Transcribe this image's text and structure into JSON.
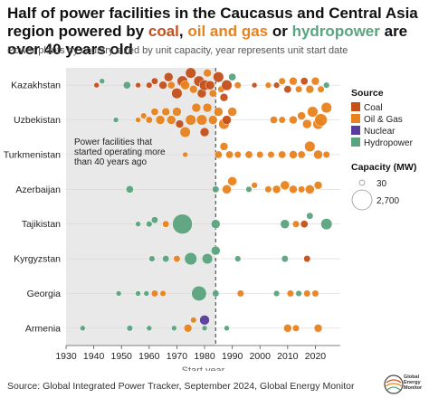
{
  "title_parts": [
    {
      "text": "Half of power facilities in the Caucasus and Central Asia region powered by ",
      "color": "#111111"
    },
    {
      "text": "coal",
      "color": "#c4501b"
    },
    {
      "text": ", ",
      "color": "#111111"
    },
    {
      "text": "oil and gas",
      "color": "#e8821e"
    },
    {
      "text": " or ",
      "color": "#111111"
    },
    {
      "text": "hydropower",
      "color": "#5aa47f"
    },
    {
      "text": " are over 40 years old",
      "color": "#111111"
    }
  ],
  "subtitle": "Power plants by country sized by unit capacity, year represents unit start date",
  "footer": "Source: Global Integrated Power Tracker, September 2024, Global Energy Monitor",
  "logo_text": "Global Energy Monitor",
  "chart_data": {
    "type": "scatter",
    "subtype": "beeswarm",
    "xlabel": "Start year",
    "xlim": [
      1930,
      2029
    ],
    "xticks": [
      1930,
      1940,
      1950,
      1960,
      1970,
      1980,
      1990,
      2000,
      2010,
      2020
    ],
    "shaded_region": [
      1930,
      1984
    ],
    "reference_line_x": 1984,
    "annotation": "Power facilities that started operating more than 40 years ago",
    "countries": [
      "Kazakhstan",
      "Uzbekistan",
      "Turkmenistan",
      "Azerbaijan",
      "Tajikistan",
      "Kyrgyzstan",
      "Georgia",
      "Armenia"
    ],
    "legend_source": {
      "title": "Source",
      "items": [
        {
          "name": "Coal",
          "color": "#c4501b"
        },
        {
          "name": "Oil & Gas",
          "color": "#e8821e"
        },
        {
          "name": "Nuclear",
          "color": "#5a3c9c"
        },
        {
          "name": "Hydropower",
          "color": "#5aa47f"
        }
      ]
    },
    "legend_capacity": {
      "title": "Capacity (MW)",
      "items": [
        {
          "label": "30",
          "value": 30
        },
        {
          "label": "2,700",
          "value": 2700
        }
      ]
    },
    "series": [
      {
        "country": "Kazakhstan",
        "points": [
          {
            "x": 1941,
            "type": "Coal",
            "cap": 30
          },
          {
            "x": 1943,
            "type": "Hydropower",
            "cap": 30
          },
          {
            "x": 1952,
            "type": "Hydropower",
            "cap": 150
          },
          {
            "x": 1956,
            "type": "Coal",
            "cap": 30
          },
          {
            "x": 1960,
            "type": "Coal",
            "cap": 60
          },
          {
            "x": 1962,
            "type": "Coal",
            "cap": 100
          },
          {
            "x": 1965,
            "type": "Coal",
            "cap": 200
          },
          {
            "x": 1967,
            "type": "Coal",
            "cap": 300
          },
          {
            "x": 1968,
            "type": "Oil & Gas",
            "cap": 150
          },
          {
            "x": 1970,
            "type": "Coal",
            "cap": 500
          },
          {
            "x": 1972,
            "type": "Coal",
            "cap": 500
          },
          {
            "x": 1973,
            "type": "Oil & Gas",
            "cap": 300
          },
          {
            "x": 1975,
            "type": "Coal",
            "cap": 500
          },
          {
            "x": 1976,
            "type": "Oil & Gas",
            "cap": 200
          },
          {
            "x": 1978,
            "type": "Coal",
            "cap": 500
          },
          {
            "x": 1979,
            "type": "Coal",
            "cap": 300
          },
          {
            "x": 1980,
            "type": "Coal",
            "cap": 500
          },
          {
            "x": 1981,
            "type": "Oil & Gas",
            "cap": 200
          },
          {
            "x": 1982,
            "type": "Coal",
            "cap": 300
          },
          {
            "x": 1983,
            "type": "Oil & Gas",
            "cap": 150
          },
          {
            "x": 1985,
            "type": "Coal",
            "cap": 500
          },
          {
            "x": 1986,
            "type": "Oil & Gas",
            "cap": 100
          },
          {
            "x": 1987,
            "type": "Coal",
            "cap": 200
          },
          {
            "x": 1988,
            "type": "Coal",
            "cap": 500
          },
          {
            "x": 1990,
            "type": "Hydropower",
            "cap": 150
          },
          {
            "x": 1992,
            "type": "Oil & Gas",
            "cap": 100
          },
          {
            "x": 1998,
            "type": "Coal",
            "cap": 30
          },
          {
            "x": 2003,
            "type": "Oil & Gas",
            "cap": 60
          },
          {
            "x": 2006,
            "type": "Coal",
            "cap": 60
          },
          {
            "x": 2008,
            "type": "Oil & Gas",
            "cap": 100
          },
          {
            "x": 2010,
            "type": "Coal",
            "cap": 150
          },
          {
            "x": 2012,
            "type": "Oil & Gas",
            "cap": 200
          },
          {
            "x": 2014,
            "type": "Oil & Gas",
            "cap": 100
          },
          {
            "x": 2016,
            "type": "Coal",
            "cap": 150
          },
          {
            "x": 2018,
            "type": "Oil & Gas",
            "cap": 200
          },
          {
            "x": 2020,
            "type": "Oil & Gas",
            "cap": 200
          },
          {
            "x": 2022,
            "type": "Oil & Gas",
            "cap": 100
          },
          {
            "x": 2024,
            "type": "Hydropower",
            "cap": 60
          }
        ]
      },
      {
        "country": "Uzbekistan",
        "points": [
          {
            "x": 1948,
            "type": "Hydropower",
            "cap": 30
          },
          {
            "x": 1956,
            "type": "Oil & Gas",
            "cap": 30
          },
          {
            "x": 1958,
            "type": "Oil & Gas",
            "cap": 60
          },
          {
            "x": 1960,
            "type": "Oil & Gas",
            "cap": 100
          },
          {
            "x": 1962,
            "type": "Oil & Gas",
            "cap": 150
          },
          {
            "x": 1964,
            "type": "Oil & Gas",
            "cap": 300
          },
          {
            "x": 1966,
            "type": "Oil & Gas",
            "cap": 200
          },
          {
            "x": 1968,
            "type": "Oil & Gas",
            "cap": 300
          },
          {
            "x": 1970,
            "type": "Oil & Gas",
            "cap": 300
          },
          {
            "x": 1971,
            "type": "Coal",
            "cap": 200
          },
          {
            "x": 1973,
            "type": "Oil & Gas",
            "cap": 500
          },
          {
            "x": 1975,
            "type": "Oil & Gas",
            "cap": 500
          },
          {
            "x": 1977,
            "type": "Oil & Gas",
            "cap": 300
          },
          {
            "x": 1979,
            "type": "Oil & Gas",
            "cap": 500
          },
          {
            "x": 1980,
            "type": "Coal",
            "cap": 300
          },
          {
            "x": 1981,
            "type": "Oil & Gas",
            "cap": 300
          },
          {
            "x": 1983,
            "type": "Oil & Gas",
            "cap": 300
          },
          {
            "x": 1985,
            "type": "Oil & Gas",
            "cap": 300
          },
          {
            "x": 1987,
            "type": "Oil & Gas",
            "cap": 500
          },
          {
            "x": 1988,
            "type": "Coal",
            "cap": 300
          },
          {
            "x": 1990,
            "type": "Oil & Gas",
            "cap": 300
          },
          {
            "x": 2005,
            "type": "Oil & Gas",
            "cap": 150
          },
          {
            "x": 2008,
            "type": "Oil & Gas",
            "cap": 100
          },
          {
            "x": 2012,
            "type": "Oil & Gas",
            "cap": 200
          },
          {
            "x": 2015,
            "type": "Oil & Gas",
            "cap": 200
          },
          {
            "x": 2017,
            "type": "Oil & Gas",
            "cap": 300
          },
          {
            "x": 2019,
            "type": "Oil & Gas",
            "cap": 500
          },
          {
            "x": 2021,
            "type": "Oil & Gas",
            "cap": 500
          },
          {
            "x": 2022,
            "type": "Oil & Gas",
            "cap": 800
          },
          {
            "x": 2024,
            "type": "Oil & Gas",
            "cap": 500
          }
        ]
      },
      {
        "country": "Turkmenistan",
        "points": [
          {
            "x": 1973,
            "type": "Oil & Gas",
            "cap": 30
          },
          {
            "x": 1985,
            "type": "Oil & Gas",
            "cap": 150
          },
          {
            "x": 1987,
            "type": "Oil & Gas",
            "cap": 200
          },
          {
            "x": 1989,
            "type": "Oil & Gas",
            "cap": 150
          },
          {
            "x": 1992,
            "type": "Oil & Gas",
            "cap": 100
          },
          {
            "x": 1996,
            "type": "Oil & Gas",
            "cap": 150
          },
          {
            "x": 2000,
            "type": "Oil & Gas",
            "cap": 100
          },
          {
            "x": 2004,
            "type": "Oil & Gas",
            "cap": 100
          },
          {
            "x": 2008,
            "type": "Oil & Gas",
            "cap": 150
          },
          {
            "x": 2012,
            "type": "Oil & Gas",
            "cap": 200
          },
          {
            "x": 2015,
            "type": "Oil & Gas",
            "cap": 150
          },
          {
            "x": 2018,
            "type": "Oil & Gas",
            "cap": 500
          },
          {
            "x": 2021,
            "type": "Oil & Gas",
            "cap": 300
          },
          {
            "x": 2024,
            "type": "Oil & Gas",
            "cap": 100
          }
        ]
      },
      {
        "country": "Azerbaijan",
        "points": [
          {
            "x": 1953,
            "type": "Hydropower",
            "cap": 150
          },
          {
            "x": 1984,
            "type": "Hydropower",
            "cap": 100
          },
          {
            "x": 1988,
            "type": "Oil & Gas",
            "cap": 300
          },
          {
            "x": 1990,
            "type": "Oil & Gas",
            "cap": 300
          },
          {
            "x": 1996,
            "type": "Hydropower",
            "cap": 60
          },
          {
            "x": 1998,
            "type": "Oil & Gas",
            "cap": 60
          },
          {
            "x": 2003,
            "type": "Oil & Gas",
            "cap": 100
          },
          {
            "x": 2006,
            "type": "Oil & Gas",
            "cap": 200
          },
          {
            "x": 2009,
            "type": "Oil & Gas",
            "cap": 300
          },
          {
            "x": 2012,
            "type": "Oil & Gas",
            "cap": 200
          },
          {
            "x": 2015,
            "type": "Oil & Gas",
            "cap": 100
          },
          {
            "x": 2018,
            "type": "Oil & Gas",
            "cap": 300
          },
          {
            "x": 2021,
            "type": "Oil & Gas",
            "cap": 200
          }
        ]
      },
      {
        "country": "Tajikistan",
        "points": [
          {
            "x": 1956,
            "type": "Hydropower",
            "cap": 30
          },
          {
            "x": 1960,
            "type": "Hydropower",
            "cap": 60
          },
          {
            "x": 1962,
            "type": "Hydropower",
            "cap": 100
          },
          {
            "x": 1966,
            "type": "Oil & Gas",
            "cap": 100
          },
          {
            "x": 1972,
            "type": "Hydropower",
            "cap": 2700
          },
          {
            "x": 1984,
            "type": "Hydropower",
            "cap": 300
          },
          {
            "x": 2009,
            "type": "Hydropower",
            "cap": 300
          },
          {
            "x": 2013,
            "type": "Oil & Gas",
            "cap": 100
          },
          {
            "x": 2016,
            "type": "Coal",
            "cap": 150
          },
          {
            "x": 2018,
            "type": "Hydropower",
            "cap": 100
          },
          {
            "x": 2024,
            "type": "Hydropower",
            "cap": 600
          }
        ]
      },
      {
        "country": "Kyrgyzstan",
        "points": [
          {
            "x": 1961,
            "type": "Hydropower",
            "cap": 60
          },
          {
            "x": 1966,
            "type": "Hydropower",
            "cap": 100
          },
          {
            "x": 1970,
            "type": "Oil & Gas",
            "cap": 100
          },
          {
            "x": 1975,
            "type": "Hydropower",
            "cap": 800
          },
          {
            "x": 1981,
            "type": "Hydropower",
            "cap": 500
          },
          {
            "x": 1984,
            "type": "Hydropower",
            "cap": 300
          },
          {
            "x": 1992,
            "type": "Hydropower",
            "cap": 60
          },
          {
            "x": 2009,
            "type": "Hydropower",
            "cap": 100
          },
          {
            "x": 2017,
            "type": "Coal",
            "cap": 100
          }
        ]
      },
      {
        "country": "Georgia",
        "points": [
          {
            "x": 1949,
            "type": "Hydropower",
            "cap": 30
          },
          {
            "x": 1956,
            "type": "Hydropower",
            "cap": 30
          },
          {
            "x": 1959,
            "type": "Hydropower",
            "cap": 30
          },
          {
            "x": 1962,
            "type": "Oil & Gas",
            "cap": 100
          },
          {
            "x": 1965,
            "type": "Oil & Gas",
            "cap": 60
          },
          {
            "x": 1978,
            "type": "Hydropower",
            "cap": 1300
          },
          {
            "x": 1984,
            "type": "Hydropower",
            "cap": 100
          },
          {
            "x": 1993,
            "type": "Oil & Gas",
            "cap": 100
          },
          {
            "x": 2006,
            "type": "Hydropower",
            "cap": 60
          },
          {
            "x": 2011,
            "type": "Oil & Gas",
            "cap": 100
          },
          {
            "x": 2014,
            "type": "Hydropower",
            "cap": 60
          },
          {
            "x": 2017,
            "type": "Oil & Gas",
            "cap": 100
          },
          {
            "x": 2020,
            "type": "Oil & Gas",
            "cap": 100
          }
        ]
      },
      {
        "country": "Armenia",
        "points": [
          {
            "x": 1936,
            "type": "Hydropower",
            "cap": 30
          },
          {
            "x": 1953,
            "type": "Hydropower",
            "cap": 60
          },
          {
            "x": 1960,
            "type": "Hydropower",
            "cap": 30
          },
          {
            "x": 1969,
            "type": "Hydropower",
            "cap": 30
          },
          {
            "x": 1974,
            "type": "Oil & Gas",
            "cap": 200
          },
          {
            "x": 1976,
            "type": "Oil & Gas",
            "cap": 60
          },
          {
            "x": 1980,
            "type": "Hydropower",
            "cap": 30
          },
          {
            "x": 1980,
            "type": "Nuclear",
            "cap": 400
          },
          {
            "x": 1988,
            "type": "Hydropower",
            "cap": 30
          },
          {
            "x": 2010,
            "type": "Oil & Gas",
            "cap": 200
          },
          {
            "x": 2013,
            "type": "Oil & Gas",
            "cap": 100
          },
          {
            "x": 2021,
            "type": "Oil & Gas",
            "cap": 200
          }
        ]
      }
    ]
  }
}
